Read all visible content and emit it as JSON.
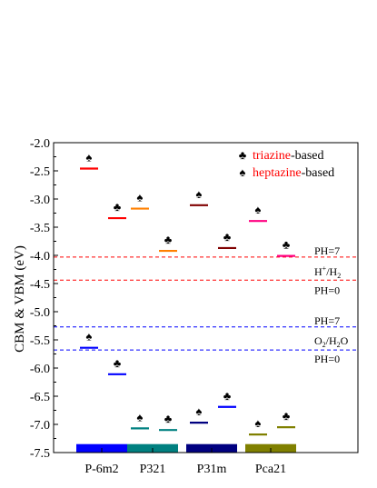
{
  "chart_data": {
    "type": "scatter",
    "ylabel": "CBM & VBM  (eV)",
    "ylim": [
      -7.5,
      -2.0
    ],
    "yticks": [
      -2.0,
      -2.5,
      -3.0,
      -3.5,
      -4.0,
      -4.5,
      -5.0,
      -5.5,
      -6.0,
      -6.5,
      -7.0,
      -7.5
    ],
    "categories": [
      "P-6m2",
      "P321",
      "P31m",
      "Pca21"
    ],
    "category_colors": [
      "#0000ff",
      "#008080",
      "#000080",
      "#808000"
    ],
    "legend": {
      "position": "top-right",
      "items": [
        {
          "symbol": "♣",
          "prefix": "triazine",
          "prefix_color": "#ff0000",
          "suffix": "-based"
        },
        {
          "symbol": "♠",
          "prefix": "heptazine",
          "prefix_color": "#ff0000",
          "suffix": "-based"
        }
      ]
    },
    "levels": [
      {
        "category": "P-6m2",
        "type": "heptazine",
        "symbol": "♠",
        "cbm": -2.46,
        "vbm": -5.64,
        "cbm_color": "#ff0000",
        "vbm_color": "#0000ff"
      },
      {
        "category": "P-6m2",
        "type": "triazine",
        "symbol": "♣",
        "cbm": -3.34,
        "vbm": -6.11,
        "cbm_color": "#ff0000",
        "vbm_color": "#0000ff"
      },
      {
        "category": "P321",
        "type": "heptazine",
        "symbol": "♠",
        "cbm": -3.17,
        "vbm": -7.07,
        "cbm_color": "#ff8000",
        "vbm_color": "#008080"
      },
      {
        "category": "P321",
        "type": "triazine",
        "symbol": "♣",
        "cbm": -3.92,
        "vbm": -7.1,
        "cbm_color": "#ff8000",
        "vbm_color": "#008080"
      },
      {
        "category": "P31m",
        "type": "heptazine",
        "symbol": "♠",
        "cbm": -3.11,
        "vbm": -6.97,
        "cbm_color": "#800000",
        "vbm_color": "#000080"
      },
      {
        "category": "P31m",
        "type": "triazine",
        "symbol": "♣",
        "cbm": -3.87,
        "vbm": -6.69,
        "cbm_color": "#800000",
        "vbm_color": "#0000ff"
      },
      {
        "category": "Pca21",
        "type": "heptazine",
        "symbol": "♠",
        "cbm": -3.39,
        "vbm": -7.18,
        "cbm_color": "#ff0080",
        "vbm_color": "#808000"
      },
      {
        "category": "Pca21",
        "type": "triazine",
        "symbol": "♣",
        "cbm": -4.01,
        "vbm": -7.05,
        "cbm_color": "#ff0080",
        "vbm_color": "#808000"
      }
    ],
    "reference_lines": [
      {
        "y": -4.03,
        "color": "#ff0000"
      },
      {
        "y": -4.44,
        "color": "#ff0000"
      },
      {
        "y": -5.27,
        "color": "#0000ff"
      },
      {
        "y": -5.68,
        "color": "#0000ff"
      }
    ],
    "annotations": [
      {
        "text": "PH=7",
        "y": -3.92
      },
      {
        "text": "H+/H2",
        "y": -4.29
      },
      {
        "text": "PH=0",
        "y": -4.62
      },
      {
        "text": "PH=7",
        "y": -5.16
      },
      {
        "text": "O2/H2O",
        "y": -5.52
      },
      {
        "text": "PH=0",
        "y": -5.84
      }
    ],
    "base_bar_range": [
      -7.5,
      -7.35
    ]
  }
}
